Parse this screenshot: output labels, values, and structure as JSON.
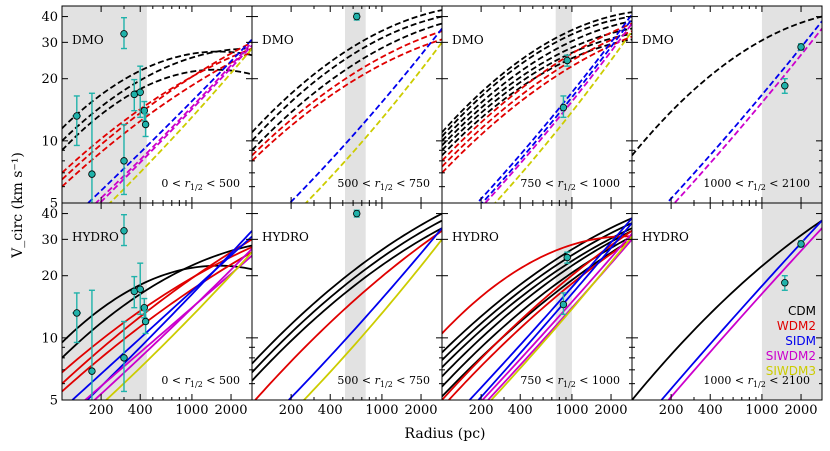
{
  "figure": {
    "ylabel": "V_circ (km s⁻¹)",
    "xlabel": "Radius (pc)",
    "legend": {
      "placement": "lower-right of bottom-right panel",
      "entries": [
        {
          "label": "CDM",
          "color": "#000000"
        },
        {
          "label": "WDM2",
          "color": "#e00000"
        },
        {
          "label": "SIDM",
          "color": "#0000ee"
        },
        {
          "label": "SIWDM2",
          "color": "#cc00cc"
        },
        {
          "label": "SIWDM3",
          "color": "#cccc00"
        }
      ]
    }
  },
  "chart_data": {
    "type": "line",
    "layout": "2 rows x 4 columns small multiples",
    "xscale": "log",
    "yscale": "log",
    "xlim": [
      100,
      2900
    ],
    "ylim": [
      5,
      45
    ],
    "xticks": [
      200,
      400,
      1000,
      2000
    ],
    "xtick_labels": [
      "200",
      "400",
      "1000",
      "2000"
    ],
    "yticks": [
      5,
      10,
      20,
      30,
      40
    ],
    "ytick_labels": [
      "5",
      "10",
      "20",
      "30",
      "40"
    ],
    "grid": false,
    "colors": {
      "CDM": "#000000",
      "WDM2": "#e00000",
      "SIDM": "#0000ee",
      "SIWDM2": "#cc00cc",
      "SIWDM3": "#cccc00",
      "obs": "#20b2aa"
    },
    "columns": [
      {
        "range_label": "0 < r1/2 < 500",
        "shaded_x": [
          100,
          450
        ],
        "observations": [
          {
            "r": 130,
            "v": 13.2,
            "verr": [
              9.5,
              16.5
            ],
            "rerr": [
              120,
              140
            ]
          },
          {
            "r": 170,
            "v": 6.9,
            "verr": [
              4.8,
              17.0
            ],
            "rerr": [
              160,
              180
            ]
          },
          {
            "r": 300,
            "v": 33.0,
            "verr": [
              28.0,
              39.5
            ],
            "rerr": [
              285,
              315
            ]
          },
          {
            "r": 300,
            "v": 8.0,
            "verr": [
              5.5,
              12.0
            ],
            "rerr": [
              285,
              315
            ]
          },
          {
            "r": 360,
            "v": 16.8,
            "verr": [
              14.0,
              19.8
            ],
            "rerr": [
              340,
              380
            ]
          },
          {
            "r": 400,
            "v": 17.2,
            "verr": [
              13.0,
              23.0
            ],
            "rerr": [
              380,
              420
            ]
          },
          {
            "r": 430,
            "v": 14.0,
            "verr": [
              12.5,
              15.5
            ],
            "rerr": [
              410,
              450
            ]
          },
          {
            "r": 440,
            "v": 12.0,
            "verr": [
              10.5,
              13.5
            ],
            "rerr": [
              420,
              460
            ]
          }
        ],
        "dmo": [
          {
            "model": "CDM",
            "v100": 9.0,
            "v2900": 21.0,
            "c": 0.6
          },
          {
            "model": "CDM",
            "v100": 11.5,
            "v2900": 26.0,
            "c": 0.55
          },
          {
            "model": "CDM",
            "v100": 10.0,
            "v2900": 28.0,
            "c": 0.45
          },
          {
            "model": "WDM2",
            "v100": 6.5,
            "v2900": 30.0,
            "c": 0.2
          },
          {
            "model": "WDM2",
            "v100": 7.0,
            "v2900": 28.0,
            "c": 0.25
          },
          {
            "model": "WDM2",
            "v100": 6.0,
            "v2900": 27.0,
            "c": 0.2
          },
          {
            "model": "SIDM",
            "v100": 3.8,
            "v2900": 31.0,
            "c": -0.05
          },
          {
            "model": "SIWDM2",
            "v100": 3.5,
            "v2900": 30.0,
            "c": -0.08
          },
          {
            "model": "SIWDM2",
            "v100": 3.3,
            "v2900": 29.0,
            "c": -0.05
          },
          {
            "model": "SIWDM3",
            "v100": 3.0,
            "v2900": 28.0,
            "c": -0.12
          }
        ],
        "hydro": [
          {
            "model": "CDM",
            "v100": 9.5,
            "v2900": 21.5,
            "c": 0.55
          },
          {
            "model": "CDM",
            "v100": 8.0,
            "v2900": 28.0,
            "c": 0.35
          },
          {
            "model": "WDM2",
            "v100": 6.0,
            "v2900": 30.0,
            "c": 0.15
          },
          {
            "model": "WDM2",
            "v100": 6.8,
            "v2900": 27.5,
            "c": 0.2
          },
          {
            "model": "WDM2",
            "v100": 5.5,
            "v2900": 26.0,
            "c": 0.15
          },
          {
            "model": "SIDM",
            "v100": 3.8,
            "v2900": 33.0,
            "c": -0.05
          },
          {
            "model": "SIDM",
            "v100": 4.5,
            "v2900": 31.0,
            "c": 0.0
          },
          {
            "model": "SIWDM2",
            "v100": 3.6,
            "v2900": 27.0,
            "c": -0.05
          },
          {
            "model": "SIWDM2",
            "v100": 4.0,
            "v2900": 25.0,
            "c": 0.0
          },
          {
            "model": "SIWDM3",
            "v100": 3.2,
            "v2900": 26.0,
            "c": -0.1
          }
        ]
      },
      {
        "range_label": "500 < r1/2 < 750",
        "shaded_x": [
          520,
          750
        ],
        "observations": [
          {
            "r": 640,
            "v": 40.0,
            "verr": [
              38.5,
              41.5
            ],
            "rerr": [
              620,
              660
            ]
          }
        ],
        "dmo": [
          {
            "model": "CDM",
            "v100": 11.0,
            "v2900": 43.0,
            "c": 0.4
          },
          {
            "model": "CDM",
            "v100": 10.0,
            "v2900": 40.0,
            "c": 0.4
          },
          {
            "model": "CDM",
            "v100": 9.0,
            "v2900": 37.0,
            "c": 0.35
          },
          {
            "model": "WDM2",
            "v100": 8.5,
            "v2900": 34.0,
            "c": 0.3
          },
          {
            "model": "WDM2",
            "v100": 8.0,
            "v2900": 31.0,
            "c": 0.3
          },
          {
            "model": "SIDM",
            "v100": 3.3,
            "v2900": 35.0,
            "c": -0.15
          },
          {
            "model": "SIWDM3",
            "v100": 2.8,
            "v2900": 30.0,
            "c": -0.2
          }
        ],
        "hydro": [
          {
            "model": "CDM",
            "v100": 7.5,
            "v2900": 40.0,
            "c": 0.25
          },
          {
            "model": "CDM",
            "v100": 6.8,
            "v2900": 37.0,
            "c": 0.25
          },
          {
            "model": "CDM",
            "v100": 6.2,
            "v2900": 34.0,
            "c": 0.25
          },
          {
            "model": "WDM2",
            "v100": 4.8,
            "v2900": 33.0,
            "c": 0.2
          },
          {
            "model": "SIDM",
            "v100": 3.3,
            "v2900": 34.0,
            "c": -0.1
          },
          {
            "model": "SIWDM3",
            "v100": 2.8,
            "v2900": 30.0,
            "c": -0.15
          }
        ]
      },
      {
        "range_label": "750 < r1/2 < 1000",
        "shaded_x": [
          750,
          1000
        ],
        "observations": [
          {
            "r": 860,
            "v": 14.5,
            "verr": [
              13.0,
              16.5
            ],
            "rerr": [
              830,
              890
            ]
          },
          {
            "r": 920,
            "v": 24.5,
            "verr": [
              23.0,
              26.0
            ],
            "rerr": [
              890,
              950
            ]
          }
        ],
        "dmo": [
          {
            "model": "CDM",
            "v100": 11.0,
            "v2900": 42.0,
            "c": 0.45
          },
          {
            "model": "CDM",
            "v100": 10.5,
            "v2900": 40.0,
            "c": 0.45
          },
          {
            "model": "CDM",
            "v100": 10.0,
            "v2900": 38.0,
            "c": 0.4
          },
          {
            "model": "CDM",
            "v100": 9.5,
            "v2900": 35.0,
            "c": 0.4
          },
          {
            "model": "CDM",
            "v100": 9.0,
            "v2900": 33.0,
            "c": 0.4
          },
          {
            "model": "CDM",
            "v100": 8.5,
            "v2900": 31.0,
            "c": 0.4
          },
          {
            "model": "WDM2",
            "v100": 8.0,
            "v2900": 37.0,
            "c": 0.3
          },
          {
            "model": "WDM2",
            "v100": 7.5,
            "v2900": 34.0,
            "c": 0.3
          },
          {
            "model": "WDM2",
            "v100": 7.0,
            "v2900": 32.0,
            "c": 0.3
          },
          {
            "model": "SIDM",
            "v100": 3.3,
            "v2900": 41.0,
            "c": -0.15
          },
          {
            "model": "SIDM",
            "v100": 3.1,
            "v2900": 39.0,
            "c": -0.15
          },
          {
            "model": "SIWDM2",
            "v100": 3.0,
            "v2900": 37.0,
            "c": -0.15
          },
          {
            "model": "SIWDM3",
            "v100": 2.7,
            "v2900": 34.0,
            "c": -0.2
          }
        ],
        "hydro": [
          {
            "model": "CDM",
            "v100": 8.5,
            "v2900": 38.0,
            "c": 0.25
          },
          {
            "model": "CDM",
            "v100": 7.8,
            "v2900": 36.0,
            "c": 0.25
          },
          {
            "model": "CDM",
            "v100": 7.2,
            "v2900": 34.0,
            "c": 0.25
          },
          {
            "model": "CDM",
            "v100": 6.5,
            "v2900": 33.0,
            "c": 0.25
          },
          {
            "model": "CDM",
            "v100": 5.8,
            "v2900": 31.0,
            "c": 0.25
          },
          {
            "model": "CDM",
            "v100": 5.2,
            "v2900": 30.0,
            "c": 0.2
          },
          {
            "model": "WDM2",
            "v100": 10.5,
            "v2900": 31.0,
            "c": 0.5
          },
          {
            "model": "WDM2",
            "v100": 5.0,
            "v2900": 33.0,
            "c": 0.2
          },
          {
            "model": "WDM2",
            "v100": 4.6,
            "v2900": 30.0,
            "c": 0.2
          },
          {
            "model": "SIDM",
            "v100": 3.6,
            "v2900": 38.0,
            "c": -0.05
          },
          {
            "model": "SIDM",
            "v100": 3.2,
            "v2900": 36.0,
            "c": -0.05
          },
          {
            "model": "SIWDM2",
            "v100": 3.1,
            "v2900": 32.0,
            "c": -0.05
          },
          {
            "model": "SIWDM2",
            "v100": 2.9,
            "v2900": 30.0,
            "c": -0.05
          },
          {
            "model": "SIWDM3",
            "v100": 2.8,
            "v2900": 31.0,
            "c": -0.1
          }
        ]
      },
      {
        "range_label": "1000 < r1/2 < 2100",
        "shaded_x": [
          1000,
          2900
        ],
        "observations": [
          {
            "r": 1500,
            "v": 18.5,
            "verr": [
              17.0,
              20.0
            ],
            "rerr": [
              1450,
              1550
            ]
          },
          {
            "r": 2000,
            "v": 28.5,
            "verr": [
              27.5,
              29.5
            ],
            "rerr": [
              1950,
              2050
            ]
          }
        ],
        "dmo": [
          {
            "model": "CDM",
            "v100": 8.5,
            "v2900": 40.0,
            "c": 0.45
          },
          {
            "model": "SIDM",
            "v100": 3.3,
            "v2900": 38.0,
            "c": -0.1
          },
          {
            "model": "SIWDM2",
            "v100": 3.0,
            "v2900": 35.0,
            "c": -0.1
          }
        ],
        "hydro": [
          {
            "model": "CDM",
            "v100": 5.0,
            "v2900": 37.0,
            "c": 0.25
          },
          {
            "model": "SIDM",
            "v100": 3.4,
            "v2900": 37.0,
            "c": 0.05
          },
          {
            "model": "SIWDM2",
            "v100": 3.1,
            "v2900": 34.0,
            "c": 0.05
          }
        ]
      }
    ],
    "rows": [
      {
        "label": "DMO",
        "linestyle": "dashed"
      },
      {
        "label": "HYDRO",
        "linestyle": "solid"
      }
    ]
  }
}
